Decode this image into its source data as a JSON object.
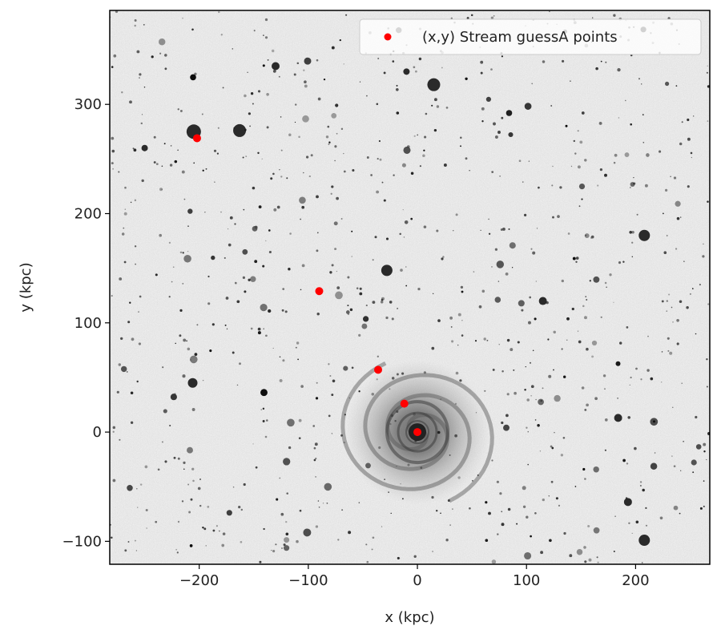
{
  "chart_data": {
    "type": "scatter",
    "title": "",
    "xlabel": "x (kpc)",
    "ylabel": "y (kpc)",
    "xlim": [
      -282,
      268
    ],
    "ylim": [
      -121,
      386
    ],
    "xticks": [
      -200,
      -100,
      0,
      100,
      200
    ],
    "yticks": [
      -100,
      0,
      100,
      200,
      300
    ],
    "xtick_labels": [
      "−200",
      "−100",
      "0",
      "100",
      "200"
    ],
    "ytick_labels": [
      "−100",
      "0",
      "100",
      "200",
      "300"
    ],
    "grid": false,
    "legend_position": "top-right",
    "background": "grayscale astronomical image of a spiral galaxy with a faint stellar stream",
    "series": [
      {
        "name": "(x,y) Stream guessA points",
        "color": "#ff0000",
        "marker": "circle",
        "x": [
          -202,
          -90,
          -36,
          -12,
          0
        ],
        "y": [
          269,
          129,
          57,
          26,
          0
        ]
      }
    ]
  }
}
